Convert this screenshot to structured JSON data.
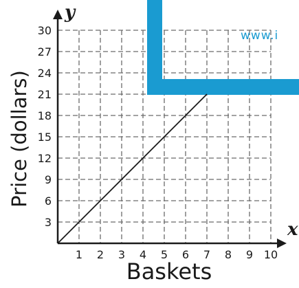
{
  "chart_data": {
    "type": "line",
    "xlabel": "Baskets",
    "ylabel": "Price (dollars)",
    "x_var": "x",
    "y_var": "y",
    "xlim": [
      0,
      10
    ],
    "ylim": [
      0,
      30
    ],
    "x_ticks": [
      1,
      2,
      3,
      4,
      5,
      6,
      7,
      8,
      9,
      10
    ],
    "y_ticks": [
      3,
      6,
      9,
      12,
      15,
      18,
      21,
      24,
      27,
      30
    ],
    "grid": true,
    "series": [
      {
        "x": [
          0,
          7
        ],
        "y": [
          0,
          21
        ]
      }
    ]
  },
  "watermark": {
    "text": "www.i"
  },
  "colors": {
    "overlay": "#1a9bd1",
    "grid": "#6b6b6b",
    "axis": "#1a1a1a",
    "line": "#1a1a1a"
  }
}
